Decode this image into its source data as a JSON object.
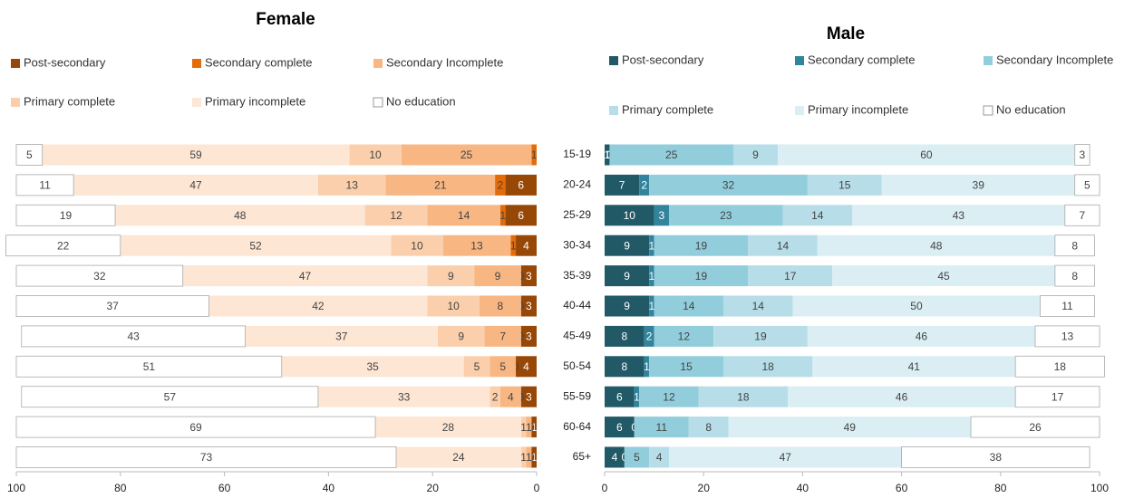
{
  "chart_data": [
    {
      "type": "bar",
      "orientation": "horizontal",
      "stacked": true,
      "title": "Female",
      "xlim": [
        100,
        0
      ],
      "xticks": [
        100,
        80,
        60,
        40,
        20,
        0
      ],
      "series": [
        {
          "name": "Post-secondary",
          "color": "#974706",
          "values": [
            0,
            6,
            6,
            4,
            3,
            3,
            3,
            4,
            3,
            1,
            1
          ]
        },
        {
          "name": "Secondary complete",
          "color": "#e36c09",
          "values": [
            1,
            2,
            1,
            1,
            0,
            0,
            0,
            0,
            0,
            0,
            0
          ]
        },
        {
          "name": "Secondary Incomplete",
          "color": "#f8b683",
          "values": [
            25,
            21,
            14,
            13,
            9,
            8,
            7,
            5,
            4,
            1,
            1
          ]
        },
        {
          "name": "Primary complete",
          "color": "#fbcfab",
          "values": [
            10,
            13,
            12,
            10,
            9,
            10,
            9,
            5,
            2,
            1,
            1
          ]
        },
        {
          "name": "Primary incomplete",
          "color": "#fde6d4",
          "values": [
            59,
            47,
            48,
            52,
            47,
            42,
            37,
            35,
            33,
            28,
            24
          ]
        },
        {
          "name": "No education",
          "color": "#ffffff",
          "values": [
            5,
            11,
            19,
            22,
            32,
            37,
            43,
            51,
            57,
            69,
            73
          ]
        }
      ]
    },
    {
      "type": "bar",
      "orientation": "horizontal",
      "stacked": true,
      "title": "Male",
      "categories": [
        "15-19",
        "20-24",
        "25-29",
        "30-34",
        "35-39",
        "40-44",
        "45-49",
        "50-54",
        "55-59",
        "60-64",
        "65+"
      ],
      "xlim": [
        0,
        100
      ],
      "xticks": [
        0,
        20,
        40,
        60,
        80,
        100
      ],
      "series": [
        {
          "name": "Post-secondary",
          "color": "#215967",
          "values": [
            1,
            7,
            10,
            9,
            9,
            9,
            8,
            8,
            6,
            6,
            4
          ]
        },
        {
          "name": "Secondary complete",
          "color": "#31849b",
          "values": [
            0,
            2,
            3,
            1,
            1,
            1,
            2,
            1,
            1,
            0,
            0
          ]
        },
        {
          "name": "Secondary Incomplete",
          "color": "#92cddc",
          "values": [
            25,
            32,
            23,
            19,
            19,
            14,
            12,
            15,
            12,
            11,
            5
          ]
        },
        {
          "name": "Primary complete",
          "color": "#b6dde8",
          "values": [
            9,
            15,
            14,
            14,
            17,
            14,
            19,
            18,
            18,
            8,
            4
          ]
        },
        {
          "name": "Primary incomplete",
          "color": "#daeef3",
          "values": [
            60,
            39,
            43,
            48,
            45,
            50,
            46,
            41,
            46,
            49,
            47
          ]
        },
        {
          "name": "No education",
          "color": "#ffffff",
          "values": [
            3,
            5,
            7,
            8,
            8,
            11,
            13,
            18,
            17,
            26,
            38
          ]
        }
      ]
    }
  ]
}
